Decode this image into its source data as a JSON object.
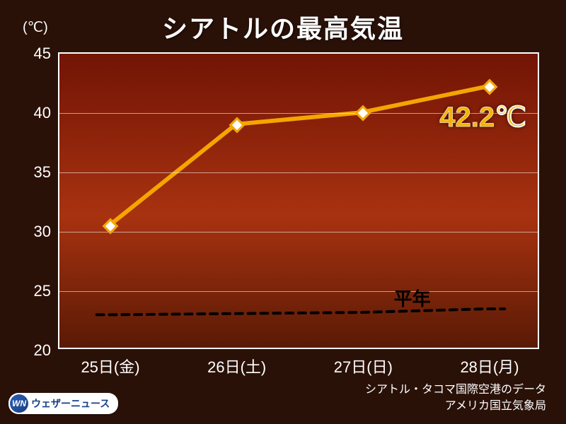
{
  "title": "シアトルの最高気温",
  "y_unit": "(℃)",
  "chart": {
    "type": "line",
    "ylim": [
      20,
      45
    ],
    "ytick_step": 5,
    "yticks": [
      20,
      25,
      30,
      35,
      40,
      45
    ],
    "x_labels": [
      "25日(金)",
      "26日(土)",
      "27日(日)",
      "28日(月)"
    ],
    "series": {
      "label": "最高気温",
      "values": [
        30.5,
        39.0,
        40.0,
        42.2
      ],
      "line_color": "#f5a500",
      "line_width": 6,
      "marker_shape": "diamond",
      "marker_fill": "#ffffff",
      "marker_border": "#f5a500",
      "marker_size": 16
    },
    "average": {
      "label": "平年",
      "values": [
        22.8,
        22.9,
        23.0,
        23.3
      ],
      "line_color": "#000000",
      "line_width": 4,
      "dash": "10,8"
    },
    "callout": {
      "text": "42.2℃",
      "color": "#f7b200",
      "fontsize": 40
    },
    "background_gradient": [
      "#721405",
      "#a83210",
      "#5a1a05"
    ],
    "border_color": "#ffffff",
    "grid_color": "rgba(255,255,255,0.55)",
    "tick_fontsize": 22,
    "tick_color": "#ffffff"
  },
  "title_fontsize": 36,
  "title_color": "#ffffff",
  "page_background": "#2a1108",
  "source": {
    "line1": "シアトル・タコマ国際空港のデータ",
    "line2": "アメリカ国立気象局"
  },
  "brand": {
    "icon_text": "WN",
    "label": "ウェザーニュース"
  }
}
